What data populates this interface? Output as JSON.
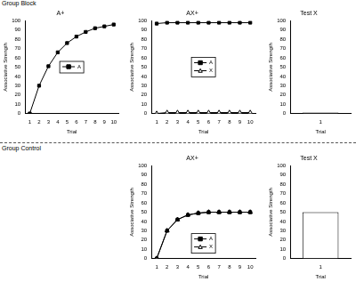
{
  "groups": [
    "Group Block",
    "Group Control"
  ],
  "chart_data": [
    {
      "type": "line",
      "title": "A+",
      "x_label": "Trial",
      "y_label": "Associative Strength",
      "x": [
        1,
        2,
        3,
        4,
        5,
        6,
        7,
        8,
        9,
        10
      ],
      "series": [
        {
          "name": "A",
          "color": "#000000",
          "marker": "square",
          "values": [
            0,
            30,
            51,
            66,
            76,
            83,
            88,
            92,
            94,
            96
          ]
        }
      ],
      "xlim": [
        0.5,
        10.5
      ],
      "xticks": [
        1,
        2,
        3,
        4,
        5,
        6,
        7,
        8,
        9,
        10
      ],
      "ylim": [
        0,
        100
      ],
      "yticks": [
        0,
        10,
        20,
        30,
        40,
        50,
        60,
        70,
        80,
        90,
        100
      ],
      "grid": false,
      "legend": "center"
    },
    {
      "type": "line",
      "title": "AX+",
      "x_label": "Trial",
      "y_label": "Associative Strength",
      "x": [
        1,
        2,
        3,
        4,
        5,
        6,
        7,
        8,
        9,
        10
      ],
      "series": [
        {
          "name": "A",
          "color": "#000000",
          "marker": "square",
          "values": [
            97,
            98,
            98,
            98,
            98,
            98,
            98,
            98,
            98,
            98
          ]
        },
        {
          "name": "X",
          "color": "#000000",
          "marker": "open_triangle",
          "values": [
            0,
            1,
            1,
            1,
            1,
            1,
            1,
            1,
            1,
            1
          ]
        }
      ],
      "xlim": [
        0.5,
        10.5
      ],
      "xticks": [
        1,
        2,
        3,
        4,
        5,
        6,
        7,
        8,
        9,
        10
      ],
      "ylim": [
        0,
        100
      ],
      "yticks": [
        0,
        10,
        20,
        30,
        40,
        50,
        60,
        70,
        80,
        90,
        100
      ],
      "grid": false,
      "legend": "center"
    },
    {
      "type": "bar",
      "title": "Test X",
      "x_label": "Trial",
      "y_label": "Associative Strength",
      "categories": [
        "1"
      ],
      "values": [
        1
      ],
      "color": "#ffffff",
      "ylim": [
        0,
        100
      ],
      "yticks": [
        0,
        10,
        20,
        30,
        40,
        50,
        60,
        70,
        80,
        90,
        100
      ],
      "grid": false
    },
    {
      "type": "line",
      "title": "AX+",
      "x_label": "Trial",
      "y_label": "Associative Strength",
      "x": [
        1,
        2,
        3,
        4,
        5,
        6,
        7,
        8,
        9,
        10
      ],
      "series": [
        {
          "name": "A",
          "color": "#000000",
          "marker": "square",
          "values": [
            0,
            30,
            42,
            47,
            49,
            50,
            50,
            50,
            50,
            50
          ]
        },
        {
          "name": "X",
          "color": "#000000",
          "marker": "open_triangle",
          "values": [
            0,
            30,
            42,
            47,
            49,
            50,
            50,
            50,
            50,
            50
          ]
        }
      ],
      "xlim": [
        0.5,
        10.5
      ],
      "xticks": [
        1,
        2,
        3,
        4,
        5,
        6,
        7,
        8,
        9,
        10
      ],
      "ylim": [
        0,
        100
      ],
      "yticks": [
        0,
        10,
        20,
        30,
        40,
        50,
        60,
        70,
        80,
        90,
        100
      ],
      "grid": false,
      "legend": "bottom"
    },
    {
      "type": "bar",
      "title": "Test X",
      "x_label": "Trial",
      "y_label": "Associative Strength",
      "categories": [
        "1"
      ],
      "values": [
        50
      ],
      "color": "#ffffff",
      "ylim": [
        0,
        100
      ],
      "yticks": [
        0,
        10,
        20,
        30,
        40,
        50,
        60,
        70,
        80,
        90,
        100
      ],
      "grid": false
    }
  ]
}
